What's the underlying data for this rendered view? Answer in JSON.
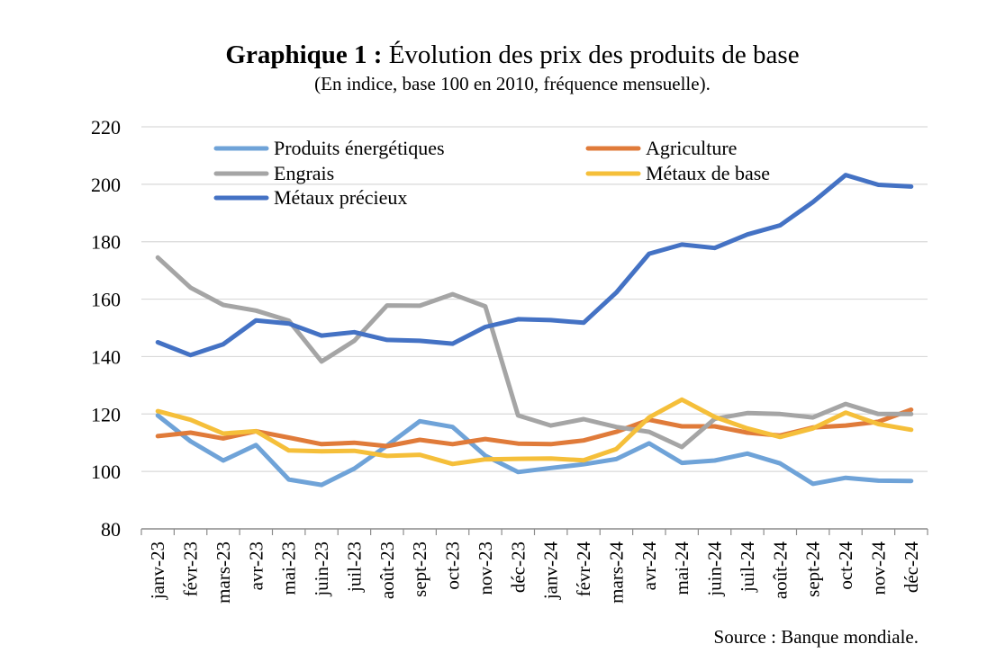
{
  "chart_data": {
    "type": "line",
    "title_bold": "Graphique 1 :",
    "title_rest": "Évolution des prix des produits de base",
    "subtitle": "(En indice, base 100 en 2010, fréquence mensuelle).",
    "source": "Source : Banque mondiale.",
    "ylim": [
      80,
      220
    ],
    "yticks": [
      "80",
      "100",
      "120",
      "140",
      "160",
      "180",
      "200",
      "220"
    ],
    "grid": true,
    "legend_position": "top",
    "categories": [
      "janv-23",
      "févr-23",
      "mars-23",
      "avr-23",
      "mai-23",
      "juin-23",
      "juil-23",
      "août-23",
      "sept-23",
      "oct-23",
      "nov-23",
      "déc-23",
      "janv-24",
      "févr-24",
      "mars-24",
      "avr-24",
      "mai-24",
      "juin-24",
      "juil-24",
      "août-24",
      "sept-24",
      "oct-24",
      "nov-24",
      "déc-24"
    ],
    "series": [
      {
        "name": "Produits énergétiques",
        "color": "#6fa3d8",
        "values": [
          119.5,
          110.5,
          103.8,
          109.2,
          97.2,
          95.3,
          101.0,
          109.0,
          117.5,
          115.5,
          105.5,
          99.8,
          101.2,
          102.5,
          104.3,
          109.8,
          103.0,
          103.8,
          106.2,
          102.8,
          95.7,
          97.8,
          96.8,
          96.7
        ]
      },
      {
        "name": "Agriculture",
        "color": "#e07b3a",
        "values": [
          112.3,
          113.5,
          111.5,
          114.0,
          111.8,
          109.5,
          110.0,
          108.8,
          111.0,
          109.5,
          111.3,
          109.7,
          109.5,
          110.8,
          113.8,
          118.0,
          115.7,
          115.7,
          113.5,
          112.5,
          115.3,
          116.0,
          117.3,
          121.5
        ]
      },
      {
        "name": "Engrais",
        "color": "#a5a5a5",
        "values": [
          174.5,
          164.0,
          158.0,
          156.0,
          152.5,
          138.3,
          145.5,
          157.8,
          157.7,
          161.7,
          157.5,
          119.5,
          116.0,
          118.2,
          115.5,
          113.8,
          108.5,
          118.3,
          120.3,
          120.0,
          118.8,
          123.5,
          120.0,
          120.0
        ]
      },
      {
        "name": "Métaux de base",
        "color": "#f5bf3a",
        "values": [
          121.0,
          118.0,
          113.2,
          114.0,
          107.3,
          107.0,
          107.2,
          105.4,
          105.8,
          102.6,
          104.2,
          104.4,
          104.5,
          103.9,
          107.8,
          118.8,
          125.0,
          119.0,
          115.0,
          112.0,
          115.0,
          120.5,
          116.5,
          114.5
        ]
      },
      {
        "name": "Métaux précieux",
        "color": "#4472c4",
        "values": [
          145.0,
          140.5,
          144.3,
          152.6,
          151.5,
          147.3,
          148.5,
          145.8,
          145.5,
          144.5,
          150.3,
          153.0,
          152.7,
          151.8,
          162.3,
          175.8,
          179.0,
          177.8,
          182.5,
          185.7,
          193.8,
          203.2,
          199.8,
          199.2
        ]
      }
    ]
  }
}
